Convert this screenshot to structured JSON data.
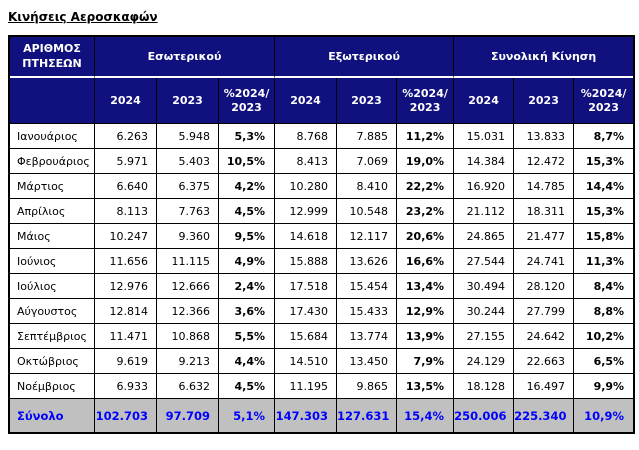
{
  "title": "Κινήσεις Αεροσκαφών",
  "colors": {
    "header_bg": "#10107E",
    "header_text": "#FFFFFF",
    "total_row_bg": "#C0C0C0",
    "total_row_text": "#0000FF",
    "border": "#000000"
  },
  "table": {
    "corner_header": "ΑΡΙΘΜΟΣ ΠΤΗΣΕΩΝ",
    "groups": [
      {
        "label": "Εσωτερικού"
      },
      {
        "label": "Εξωτερικού"
      },
      {
        "label": "Συνολική Κίνηση"
      }
    ],
    "sub_headers": [
      "2024",
      "2023",
      "%2024/ 2023"
    ],
    "rows": [
      {
        "month": "Ιανουάριος",
        "values": [
          "6.263",
          "5.948",
          "5,3%",
          "8.768",
          "7.885",
          "11,2%",
          "15.031",
          "13.833",
          "8,7%"
        ]
      },
      {
        "month": "Φεβρουάριος",
        "values": [
          "5.971",
          "5.403",
          "10,5%",
          "8.413",
          "7.069",
          "19,0%",
          "14.384",
          "12.472",
          "15,3%"
        ]
      },
      {
        "month": "Μάρτιος",
        "values": [
          "6.640",
          "6.375",
          "4,2%",
          "10.280",
          "8.410",
          "22,2%",
          "16.920",
          "14.785",
          "14,4%"
        ]
      },
      {
        "month": "Απρίλιος",
        "values": [
          "8.113",
          "7.763",
          "4,5%",
          "12.999",
          "10.548",
          "23,2%",
          "21.112",
          "18.311",
          "15,3%"
        ]
      },
      {
        "month": "Μάιος",
        "values": [
          "10.247",
          "9.360",
          "9,5%",
          "14.618",
          "12.117",
          "20,6%",
          "24.865",
          "21.477",
          "15,8%"
        ]
      },
      {
        "month": "Ιούνιος",
        "values": [
          "11.656",
          "11.115",
          "4,9%",
          "15.888",
          "13.626",
          "16,6%",
          "27.544",
          "24.741",
          "11,3%"
        ]
      },
      {
        "month": "Ιούλιος",
        "values": [
          "12.976",
          "12.666",
          "2,4%",
          "17.518",
          "15.454",
          "13,4%",
          "30.494",
          "28.120",
          "8,4%"
        ]
      },
      {
        "month": "Αύγουστος",
        "values": [
          "12.814",
          "12.366",
          "3,6%",
          "17.430",
          "15.433",
          "12,9%",
          "30.244",
          "27.799",
          "8,8%"
        ]
      },
      {
        "month": "Σεπτέμβριος",
        "values": [
          "11.471",
          "10.868",
          "5,5%",
          "15.684",
          "13.774",
          "13,9%",
          "27.155",
          "24.642",
          "10,2%"
        ]
      },
      {
        "month": "Οκτώβριος",
        "values": [
          "9.619",
          "9.213",
          "4,4%",
          "14.510",
          "13.450",
          "7,9%",
          "24.129",
          "22.663",
          "6,5%"
        ]
      },
      {
        "month": "Νοέμβριος",
        "values": [
          "6.933",
          "6.632",
          "4,5%",
          "11.195",
          "9.865",
          "13,5%",
          "18.128",
          "16.497",
          "9,9%"
        ]
      }
    ],
    "total": {
      "label": "Σύνολο",
      "values": [
        "102.703",
        "97.709",
        "5,1%",
        "147.303",
        "127.631",
        "15,4%",
        "250.006",
        "225.340",
        "10,9%"
      ]
    }
  }
}
